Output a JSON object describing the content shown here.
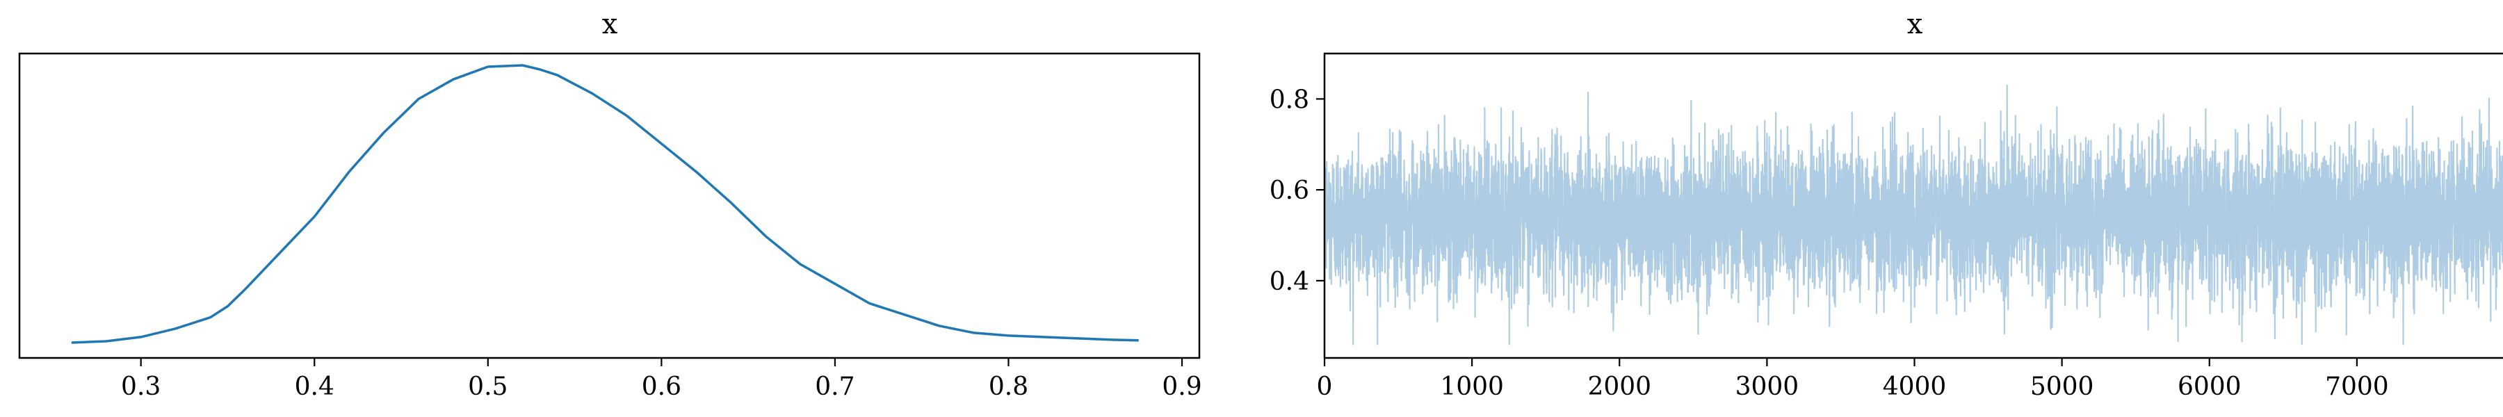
{
  "chart_data": [
    {
      "type": "line",
      "title": "x",
      "xlabel": "",
      "ylabel": "",
      "xlim": [
        0.23,
        0.91
      ],
      "xticks": [
        "0.3",
        "0.4",
        "0.5",
        "0.6",
        "0.7",
        "0.8",
        "0.9"
      ],
      "yticks": [],
      "grid": false,
      "series": [
        {
          "color": "#1f77b4",
          "x": [
            0.26,
            0.28,
            0.3,
            0.32,
            0.34,
            0.35,
            0.36,
            0.38,
            0.4,
            0.42,
            0.44,
            0.46,
            0.48,
            0.5,
            0.52,
            0.53,
            0.54,
            0.56,
            0.58,
            0.6,
            0.62,
            0.64,
            0.66,
            0.68,
            0.7,
            0.72,
            0.74,
            0.76,
            0.78,
            0.8,
            0.82,
            0.84,
            0.86,
            0.875
          ],
          "y": [
            0.01,
            0.015,
            0.03,
            0.06,
            0.1,
            0.14,
            0.2,
            0.33,
            0.46,
            0.62,
            0.76,
            0.88,
            0.95,
            0.995,
            1.0,
            0.985,
            0.965,
            0.9,
            0.82,
            0.72,
            0.62,
            0.51,
            0.39,
            0.29,
            0.22,
            0.15,
            0.11,
            0.07,
            0.045,
            0.035,
            0.03,
            0.025,
            0.02,
            0.018
          ]
        }
      ]
    },
    {
      "type": "line",
      "title": "x",
      "xlabel": "",
      "ylabel": "",
      "xlim": [
        0,
        8000
      ],
      "ylim": [
        0.23,
        0.9
      ],
      "xticks": [
        "0",
        "1000",
        "2000",
        "3000",
        "4000",
        "5000",
        "6000",
        "7000"
      ],
      "yticks": [
        "0.4",
        "0.6",
        "0.8"
      ],
      "grid": false,
      "series": [
        {
          "color": "#aecde4",
          "n_draws": 8000,
          "center": 0.54,
          "typical_band": [
            0.38,
            0.7
          ],
          "min": 0.26,
          "max": 0.87
        }
      ]
    }
  ]
}
